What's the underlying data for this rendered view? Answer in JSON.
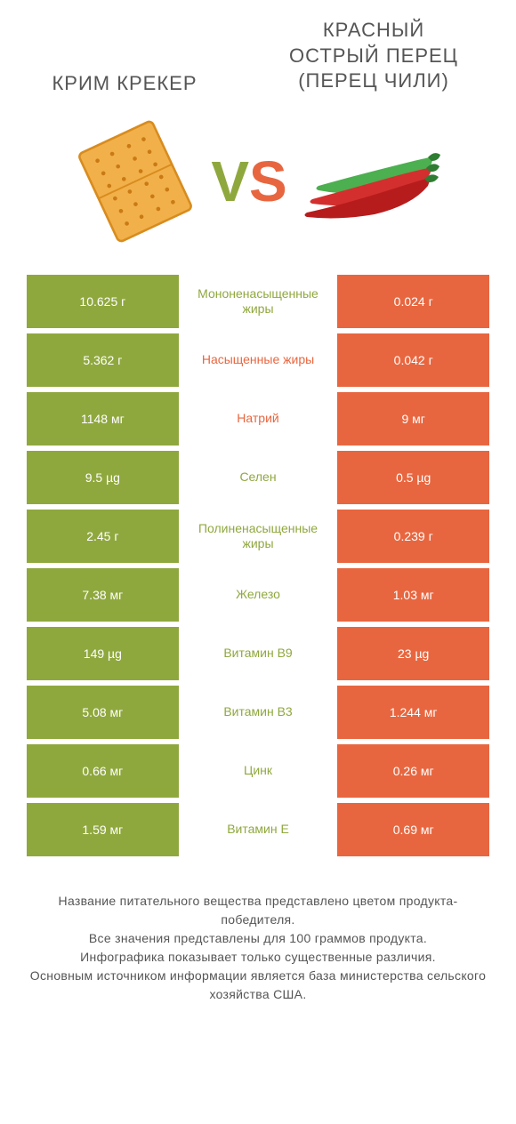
{
  "titles": {
    "left": "Крим Крекер",
    "right": "Красный острый перец (перец чили)"
  },
  "vs": {
    "v": "V",
    "s": "S"
  },
  "colors": {
    "left_bg": "#8fa83e",
    "right_bg": "#e8663f",
    "mid_green": "#8fa83e",
    "mid_red": "#e8663f",
    "text_grey": "#555555",
    "cracker_fill": "#f2b04a",
    "cracker_stroke": "#d88c1e",
    "pepper_red": "#d32f2f",
    "pepper_green": "#4caf50",
    "pepper_stem": "#2e7d32"
  },
  "rows": [
    {
      "left": "10.625 г",
      "label": "Мононенасыщенные жиры",
      "right": "0.024 г",
      "winner": "left"
    },
    {
      "left": "5.362 г",
      "label": "Насыщенные жиры",
      "right": "0.042 г",
      "winner": "right"
    },
    {
      "left": "1148 мг",
      "label": "Натрий",
      "right": "9 мг",
      "winner": "right"
    },
    {
      "left": "9.5 µg",
      "label": "Селен",
      "right": "0.5 µg",
      "winner": "left"
    },
    {
      "left": "2.45 г",
      "label": "Полиненасыщенные жиры",
      "right": "0.239 г",
      "winner": "left"
    },
    {
      "left": "7.38 мг",
      "label": "Железо",
      "right": "1.03 мг",
      "winner": "left"
    },
    {
      "left": "149 µg",
      "label": "Витамин B9",
      "right": "23 µg",
      "winner": "left"
    },
    {
      "left": "5.08 мг",
      "label": "Витамин B3",
      "right": "1.244 мг",
      "winner": "left"
    },
    {
      "left": "0.66 мг",
      "label": "Цинк",
      "right": "0.26 мг",
      "winner": "left"
    },
    {
      "left": "1.59 мг",
      "label": "Витамин E",
      "right": "0.69 мг",
      "winner": "left"
    }
  ],
  "footer": {
    "l1": "Название питательного вещества представлено цветом продукта-победителя.",
    "l2": "Все значения представлены для 100 граммов продукта.",
    "l3": "Инфографика показывает только существенные различия.",
    "l4": "Основным источником информации является база министерства сельского хозяйства США."
  }
}
